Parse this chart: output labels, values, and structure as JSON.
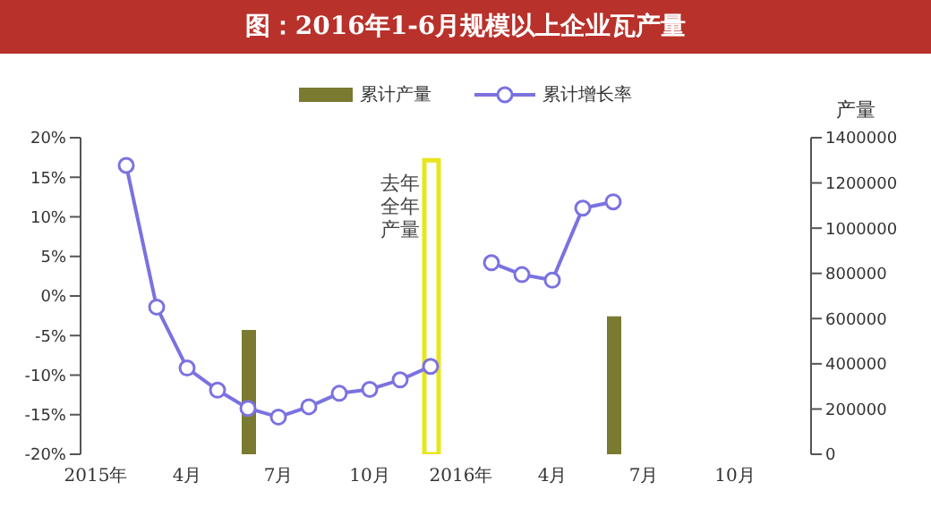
{
  "chart_data": {
    "type": "line",
    "title": "图：2016年1-6月规模以上企业瓦产量",
    "y2label": "产量",
    "categories": [
      "2015年",
      null,
      null,
      "4月",
      null,
      null,
      "7月",
      null,
      null,
      "10月",
      null,
      null,
      "2016年",
      null,
      null,
      "4月",
      null,
      null,
      "7月",
      null,
      null,
      "10月",
      null,
      null
    ],
    "series": [
      {
        "name": "累计产量",
        "type": "bar",
        "axis": "y2",
        "color": "#7a7a30",
        "values": [
          null,
          null,
          null,
          null,
          null,
          550000,
          null,
          null,
          null,
          null,
          null,
          null,
          null,
          null,
          null,
          null,
          null,
          610000,
          null,
          null,
          null,
          null,
          null,
          null
        ]
      },
      {
        "type": "bar",
        "axis": "y2",
        "color": "#e6e61e",
        "values": [
          null,
          null,
          null,
          null,
          null,
          null,
          null,
          null,
          null,
          null,
          null,
          1300000,
          null,
          null,
          null,
          null,
          null,
          null,
          null,
          null,
          null,
          null,
          null,
          null
        ]
      },
      {
        "name": "累计增长率",
        "color": "#7b72e0",
        "values": [
          null,
          16.5,
          -1.4,
          -9.1,
          -11.9,
          -14.2,
          -15.3,
          -14.0,
          -12.3,
          -11.8,
          -10.6,
          -8.9,
          null,
          4.2,
          2.7,
          2.0,
          11.1,
          11.9,
          null,
          null,
          null,
          null,
          null,
          null
        ]
      }
    ],
    "annotations": [
      "去年全年产量"
    ],
    "ylim": [
      -20,
      20
    ],
    "yticks": [
      {
        "value": -20,
        "label": "-20%"
      },
      {
        "value": -15,
        "label": "-15%"
      },
      {
        "value": -10,
        "label": "-10%"
      },
      {
        "value": -5,
        "label": "-5%"
      },
      {
        "value": 0,
        "label": "0%"
      },
      {
        "value": 5,
        "label": "5%"
      },
      {
        "value": 10,
        "label": "10%"
      },
      {
        "value": 15,
        "label": "15%"
      },
      {
        "value": 20,
        "label": "20%"
      }
    ],
    "y2lim": [
      0,
      1400000
    ],
    "y2ticks": [
      0,
      200000,
      400000,
      600000,
      800000,
      1000000,
      1200000,
      1400000
    ],
    "legend": "top",
    "marker": "circle"
  }
}
